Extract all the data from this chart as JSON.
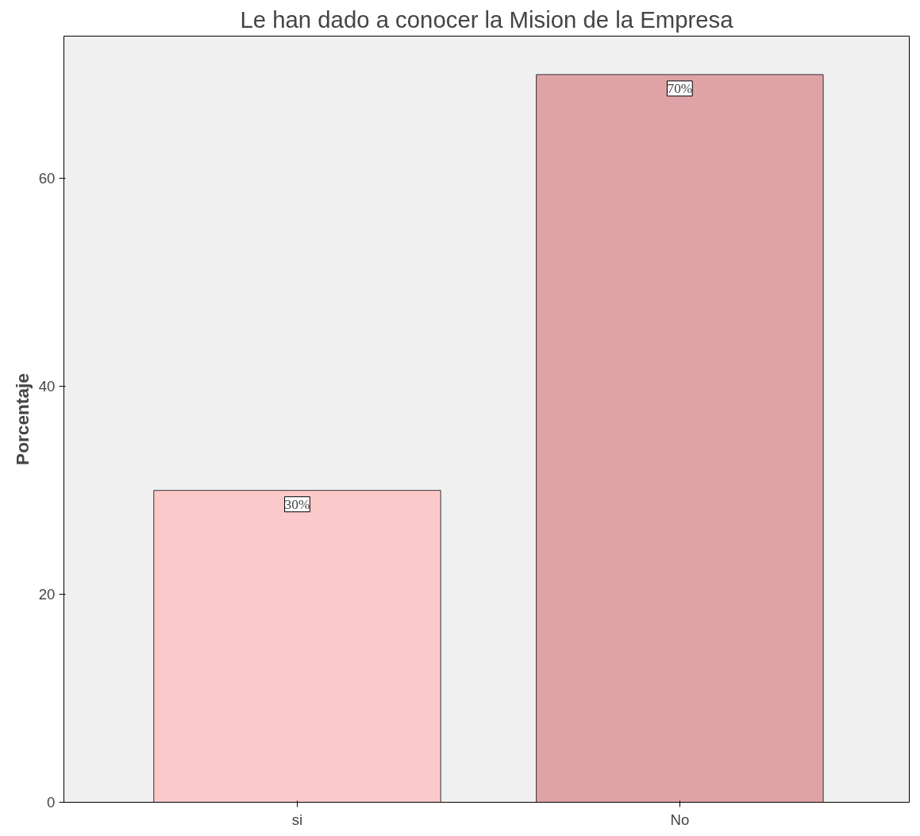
{
  "chart_data": {
    "type": "bar",
    "title": "Le han dado a conocer la Mision de la Empresa",
    "ylabel": "Porcentaje",
    "categories": [
      "si",
      "No"
    ],
    "values": [
      30,
      70
    ],
    "colors": [
      "#fbc9c9",
      "#dfa3a6"
    ],
    "value_labels": [
      "30%",
      "70%"
    ],
    "ylim": [
      0,
      73.7
    ],
    "yticks": [
      0,
      20,
      40,
      60
    ],
    "grid": false
  }
}
